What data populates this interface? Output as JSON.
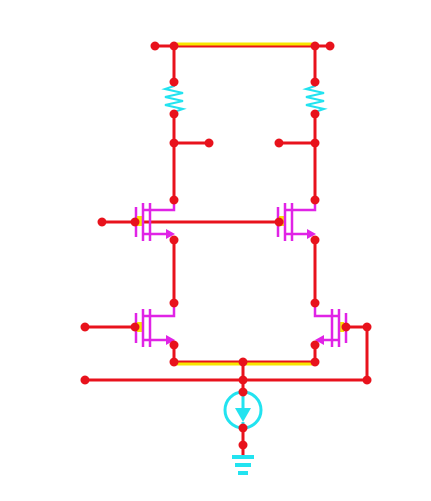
{
  "schematic": {
    "components": [
      {
        "id": "R1",
        "kind": "resistor-icon"
      },
      {
        "id": "R2",
        "kind": "resistor-icon"
      },
      {
        "id": "M1",
        "kind": "nmos-icon"
      },
      {
        "id": "M2",
        "kind": "nmos-icon"
      },
      {
        "id": "M3",
        "kind": "nmos-icon"
      },
      {
        "id": "M4",
        "kind": "nmos-icon"
      },
      {
        "id": "I1",
        "kind": "current-source-icon"
      },
      {
        "id": "GND",
        "kind": "ground-icon"
      }
    ],
    "colors": {
      "background": "#ffffff",
      "wire": "#e8121c",
      "highlight": "#f7e600",
      "resistor": "#22e3f0",
      "transistor": "#e023e6",
      "current_source": "#22e3f0",
      "ground": "#22e3f0"
    }
  }
}
